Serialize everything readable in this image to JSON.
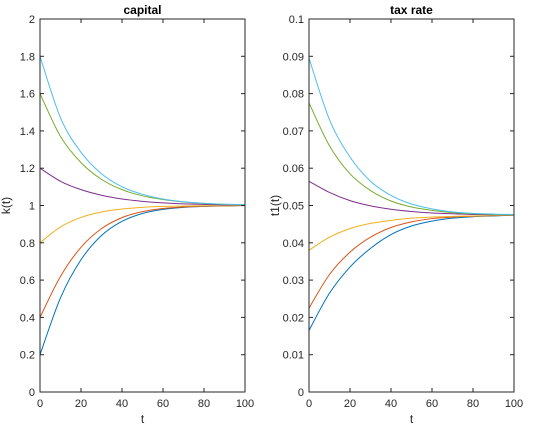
{
  "chart_data": [
    {
      "type": "line",
      "title": "capital",
      "xlabel": "t",
      "ylabel": "k(t)",
      "xlim": [
        0,
        100
      ],
      "ylim": [
        0,
        2
      ],
      "xticks": [
        "0",
        "20",
        "40",
        "60",
        "80",
        "100"
      ],
      "yticks": [
        "0",
        "0.2",
        "0.4",
        "0.6",
        "0.8",
        "1",
        "1.2",
        "1.4",
        "1.6",
        "1.8",
        "2"
      ],
      "grid": false,
      "legend": "none",
      "x": [
        0,
        10,
        20,
        30,
        40,
        50,
        60,
        70,
        80,
        90,
        100
      ],
      "series": [
        {
          "color": "#0072BD",
          "values": [
            0.2,
            0.505,
            0.709,
            0.839,
            0.915,
            0.957,
            0.979,
            0.99,
            0.995,
            0.998,
            1.0
          ]
        },
        {
          "color": "#D95319",
          "values": [
            0.4,
            0.62,
            0.776,
            0.876,
            0.935,
            0.967,
            0.984,
            0.992,
            0.996,
            0.998,
            1.0
          ]
        },
        {
          "color": "#EDB120",
          "values": [
            0.8,
            0.885,
            0.936,
            0.965,
            0.981,
            0.99,
            0.995,
            0.997,
            0.999,
            0.999,
            1.0
          ]
        },
        {
          "color": "#7E2F8E",
          "values": [
            1.2,
            1.13,
            1.085,
            1.055,
            1.035,
            1.022,
            1.014,
            1.009,
            1.006,
            1.003,
            1.002
          ]
        },
        {
          "color": "#77AC30",
          "values": [
            1.6,
            1.37,
            1.23,
            1.14,
            1.085,
            1.052,
            1.032,
            1.019,
            1.011,
            1.006,
            1.004
          ]
        },
        {
          "color": "#4DBEEE",
          "values": [
            1.8,
            1.47,
            1.285,
            1.17,
            1.1,
            1.06,
            1.035,
            1.02,
            1.012,
            1.007,
            1.004
          ]
        }
      ]
    },
    {
      "type": "line",
      "title": "tax rate",
      "xlabel": "t",
      "ylabel": "t1(t)",
      "xlim": [
        0,
        100
      ],
      "ylim": [
        0,
        0.1
      ],
      "xticks": [
        "0",
        "20",
        "40",
        "60",
        "80",
        "100"
      ],
      "yticks": [
        "0",
        "0.01",
        "0.02",
        "0.03",
        "0.04",
        "0.05",
        "0.06",
        "0.07",
        "0.08",
        "0.09",
        "0.1"
      ],
      "grid": false,
      "legend": "none",
      "x": [
        0,
        10,
        20,
        30,
        40,
        50,
        60,
        70,
        80,
        90,
        100
      ],
      "series": [
        {
          "color": "#0072BD",
          "values": [
            0.0165,
            0.0265,
            0.0335,
            0.0385,
            0.0422,
            0.0445,
            0.0458,
            0.0466,
            0.047,
            0.0472,
            0.0474
          ]
        },
        {
          "color": "#D95319",
          "values": [
            0.0225,
            0.0315,
            0.0375,
            0.0415,
            0.0441,
            0.0456,
            0.0465,
            0.0469,
            0.0471,
            0.0473,
            0.0474
          ]
        },
        {
          "color": "#EDB120",
          "values": [
            0.038,
            0.0415,
            0.0438,
            0.0452,
            0.046,
            0.0466,
            0.0469,
            0.0471,
            0.0472,
            0.0473,
            0.0474
          ]
        },
        {
          "color": "#7E2F8E",
          "values": [
            0.0565,
            0.0535,
            0.0513,
            0.0499,
            0.049,
            0.0484,
            0.048,
            0.0478,
            0.0476,
            0.0475,
            0.0475
          ]
        },
        {
          "color": "#77AC30",
          "values": [
            0.0775,
            0.066,
            0.0585,
            0.054,
            0.0512,
            0.0496,
            0.0487,
            0.0481,
            0.0478,
            0.0476,
            0.0475
          ]
        },
        {
          "color": "#4DBEEE",
          "values": [
            0.0895,
            0.073,
            0.063,
            0.0565,
            0.0527,
            0.0504,
            0.0491,
            0.0483,
            0.0479,
            0.0477,
            0.0476
          ]
        }
      ]
    }
  ]
}
